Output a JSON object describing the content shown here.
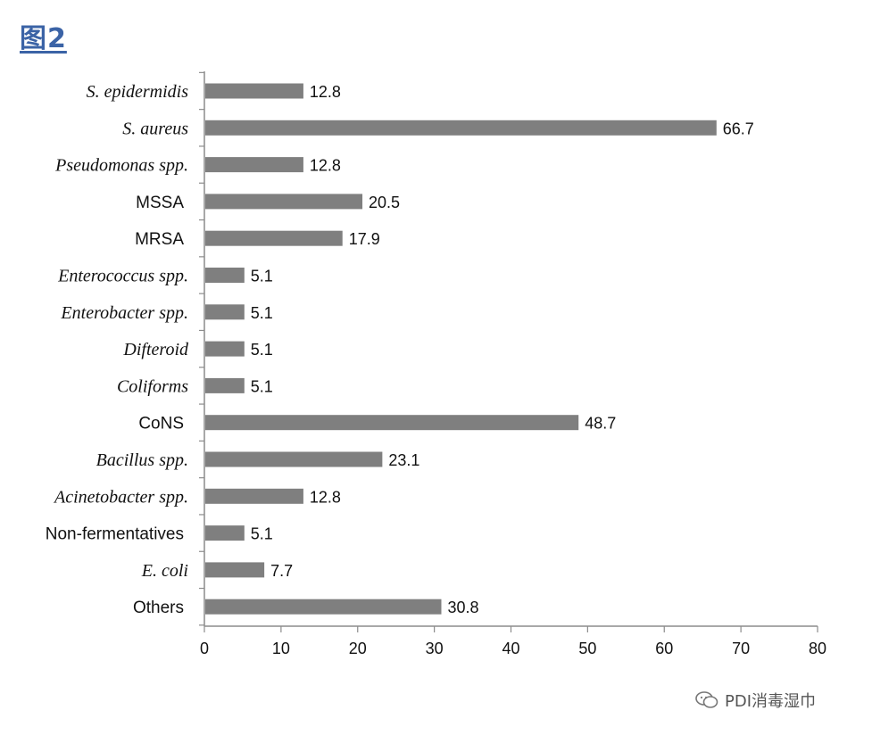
{
  "figure_title": "图2",
  "watermark": "PDI消毒湿巾",
  "chart_data": {
    "type": "bar",
    "orientation": "horizontal",
    "categories": [
      "S. epidermidis",
      "S. aureus",
      "Pseudomonas spp.",
      "MSSA",
      "MRSA",
      "Enterococcus spp.",
      "Enterobacter spp.",
      "Difteroid",
      "Coliforms",
      "CoNS",
      "Bacillus spp.",
      "Acinetobacter spp.",
      "Non-fermentatives",
      "E. coli",
      "Others"
    ],
    "italic_categories": [
      true,
      true,
      true,
      false,
      false,
      true,
      true,
      true,
      true,
      false,
      true,
      true,
      false,
      true,
      false
    ],
    "values": [
      12.8,
      66.7,
      12.8,
      20.5,
      17.9,
      5.1,
      5.1,
      5.1,
      5.1,
      48.7,
      23.1,
      12.8,
      5.1,
      7.7,
      30.8
    ],
    "value_labels": [
      "12.8",
      "66.7",
      "12.8",
      "20.5",
      "17.9",
      "5.1",
      "5.1",
      "5.1",
      "5.1",
      "48.7",
      "23.1",
      "12.8",
      "5.1",
      "7.7",
      "30.8"
    ],
    "xlim": [
      0,
      80
    ],
    "xticks": [
      0,
      10,
      20,
      30,
      40,
      50,
      60,
      70,
      80
    ],
    "xticklabels": [
      "0",
      "10",
      "20",
      "30",
      "40",
      "50",
      "60",
      "70",
      "80"
    ],
    "bar_color": "#7f7f7f",
    "axis_color": "#8c8c8c",
    "grid": false,
    "title": "",
    "xlabel": "",
    "ylabel": ""
  }
}
